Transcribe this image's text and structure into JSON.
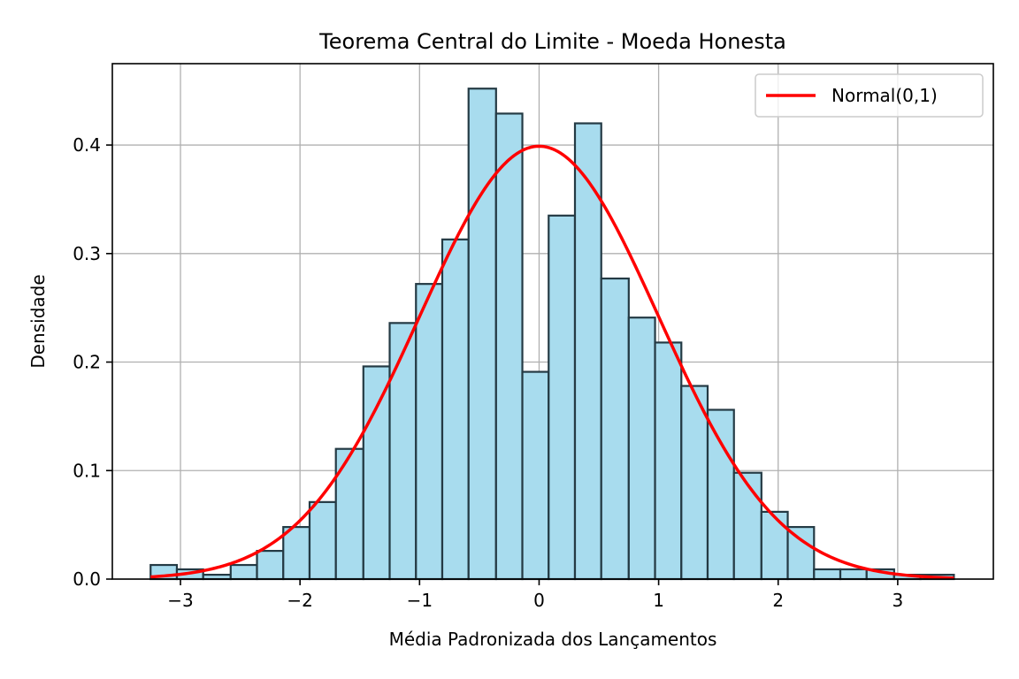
{
  "chart_data": {
    "type": "bar",
    "title": "Teorema Central do Limite - Moeda Honesta",
    "xlabel": "Média Padronizada dos Lançamentos",
    "ylabel": "Densidade",
    "xlim": [
      -3.57,
      3.8
    ],
    "ylim": [
      0,
      0.475
    ],
    "xticks": [
      -3,
      -2,
      -1,
      0,
      1,
      2,
      3
    ],
    "xtick_labels": [
      "−3",
      "−2",
      "−1",
      "0",
      "1",
      "2",
      "3"
    ],
    "yticks": [
      0.0,
      0.1,
      0.2,
      0.3,
      0.4
    ],
    "ytick_labels": [
      "0.0",
      "0.1",
      "0.2",
      "0.3",
      "0.4"
    ],
    "grid": true,
    "legend_position": "top-right",
    "histogram": {
      "bin_edges": [
        -3.25,
        -3.03,
        -2.81,
        -2.58,
        -2.36,
        -2.14,
        -1.92,
        -1.7,
        -1.47,
        -1.25,
        -1.03,
        -0.81,
        -0.59,
        -0.36,
        -0.14,
        0.08,
        0.3,
        0.52,
        0.75,
        0.97,
        1.19,
        1.41,
        1.63,
        1.86,
        2.08,
        2.3,
        2.52,
        2.74,
        2.97,
        3.19,
        3.47
      ],
      "densities": [
        0.013,
        0.009,
        0.004,
        0.013,
        0.026,
        0.048,
        0.071,
        0.12,
        0.196,
        0.236,
        0.272,
        0.313,
        0.452,
        0.429,
        0.191,
        0.335,
        0.42,
        0.277,
        0.241,
        0.218,
        0.178,
        0.156,
        0.098,
        0.062,
        0.048,
        0.009,
        0.009,
        0.009,
        0.004,
        0.004
      ],
      "fill_color": "#a8dcee",
      "edge_color": "#243a44"
    },
    "series": [
      {
        "name": "Normal(0,1)",
        "type": "line",
        "function": "standard-normal-pdf",
        "x_range": [
          -3.25,
          3.47
        ],
        "color": "#ff0000"
      }
    ]
  }
}
